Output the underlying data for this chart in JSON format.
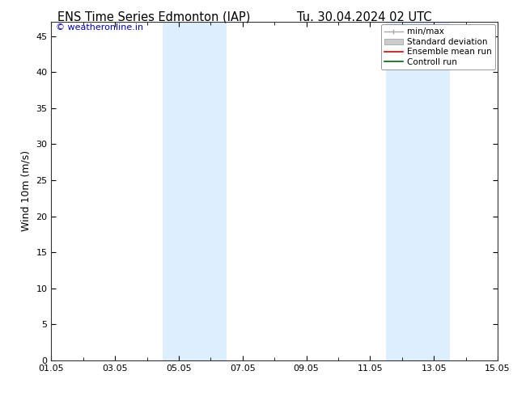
{
  "title_left": "ENS Time Series Edmonton (IAP)",
  "title_right": "Tu. 30.04.2024 02 UTC",
  "ylabel": "Wind 10m (m/s)",
  "watermark": "© weatheronline.in",
  "watermark_color": "#0000cc",
  "xtick_labels": [
    "01.05",
    "03.05",
    "05.05",
    "07.05",
    "09.05",
    "11.05",
    "13.05",
    "15.05"
  ],
  "xtick_positions": [
    0,
    2,
    4,
    6,
    8,
    10,
    12,
    14
  ],
  "ylim": [
    0,
    47
  ],
  "yticks": [
    0,
    5,
    10,
    15,
    20,
    25,
    30,
    35,
    40,
    45
  ],
  "shaded_bands": [
    {
      "x_start": 3.5,
      "x_end": 5.5,
      "color": "#ddeeff"
    },
    {
      "x_start": 10.5,
      "x_end": 12.5,
      "color": "#ddeeff"
    }
  ],
  "legend_items": [
    {
      "label": "min/max",
      "color": "#aaaaaa",
      "type": "line_with_caps"
    },
    {
      "label": "Standard deviation",
      "color": "#cccccc",
      "type": "bar"
    },
    {
      "label": "Ensemble mean run",
      "color": "#dd0000",
      "type": "line"
    },
    {
      "label": "Controll run",
      "color": "#006600",
      "type": "line"
    }
  ],
  "bg_color": "#ffffff",
  "title_fontsize": 10.5,
  "axis_label_fontsize": 9,
  "tick_fontsize": 8,
  "legend_fontsize": 7.5,
  "watermark_fontsize": 8
}
